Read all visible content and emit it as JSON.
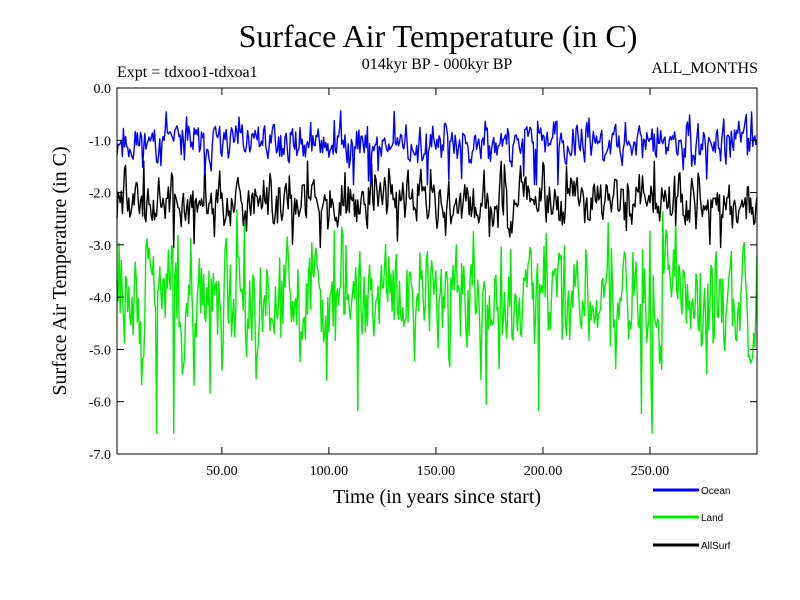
{
  "chart_data": {
    "type": "line",
    "title": "Surface Air Temperature (in C)",
    "subtitle": "014kyr BP - 000kyr BP",
    "expt_label": "Expt = tdxoo1-tdxoa1",
    "months_label": "ALL_MONTHS",
    "xlabel": "Time (in years since start)",
    "ylabel": "Surface Air Temperature (in C)",
    "xlim": [
      1,
      300
    ],
    "ylim": [
      -7.0,
      0.0
    ],
    "x_ticks": [
      50,
      100,
      150,
      200,
      250
    ],
    "x_tick_labels": [
      "50.00",
      "100.00",
      "150.00",
      "200.00",
      "250.00"
    ],
    "y_ticks": [
      0,
      -1,
      -2,
      -3,
      -4,
      -5,
      -6,
      -7
    ],
    "y_tick_labels": [
      "0.0",
      "-1.0",
      "-2.0",
      "-3.0",
      "-4.0",
      "-5.0",
      "-6.0",
      "-7.0"
    ],
    "x_start": 1,
    "x_step": 0.5,
    "n_points": 599,
    "series": [
      {
        "name": "Ocean",
        "key": "ocean",
        "color": "#0000ff",
        "mean": -1.05,
        "noise": 0.32,
        "min": -1.85,
        "max": -0.35,
        "seed": 11
      },
      {
        "name": "Land",
        "key": "land",
        "color": "#00ee00",
        "mean": -4.05,
        "noise": 0.95,
        "min": -6.6,
        "max": -2.2,
        "seed": 29
      },
      {
        "name": "AllSurf",
        "key": "allsurf",
        "color": "#000000",
        "mean": -2.15,
        "noise": 0.42,
        "min": -3.05,
        "max": -1.4,
        "seed": 47
      }
    ]
  }
}
